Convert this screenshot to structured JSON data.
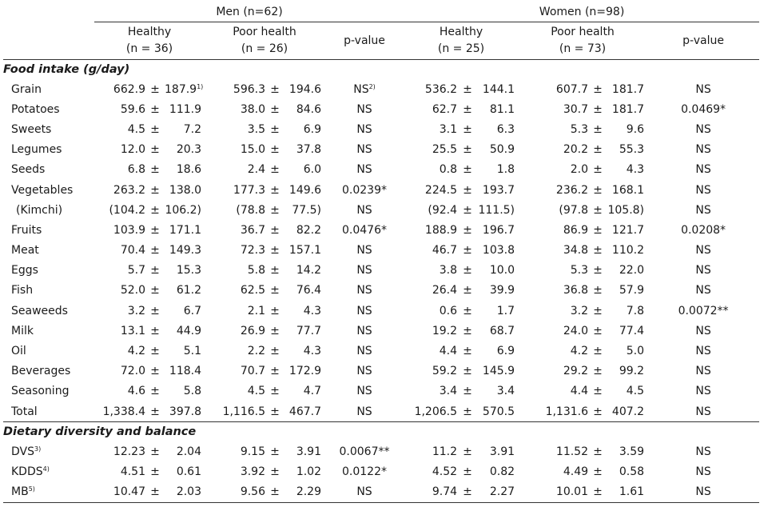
{
  "header": {
    "men_group": "Men (n=62)",
    "women_group": "Women (n=98)",
    "men_cols": [
      {
        "line1": "Healthy",
        "line2": "(n = 36)"
      },
      {
        "line1": "Poor health",
        "line2": "(n = 26)"
      },
      {
        "line1": "p-value",
        "line2": ""
      }
    ],
    "women_cols": [
      {
        "line1": "Healthy",
        "line2": "(n = 25)"
      },
      {
        "line1": "Poor health",
        "line2": "(n = 73)"
      },
      {
        "line1": "p-value",
        "line2": ""
      }
    ]
  },
  "sections": {
    "food": "Food intake (g/day)",
    "diversity": "Dietary diversity and balance"
  },
  "pm": "±",
  "food_rows": [
    {
      "label": "Grain",
      "m1": "662.9",
      "s1": "187.9",
      "s1_sup": "1)",
      "m2": "596.3",
      "s2": "194.6",
      "p1": "NS",
      "p1_sup": "2)",
      "w1": "536.2",
      "ws1": "144.1",
      "w2": "607.7",
      "ws2": "181.7",
      "p2": "NS"
    },
    {
      "label": "Potatoes",
      "m1": "59.6",
      "s1": "111.9",
      "m2": "38.0",
      "s2": "84.6",
      "p1": "NS",
      "w1": "62.7",
      "ws1": "81.1",
      "w2": "30.7",
      "ws2": "181.7",
      "p2": "0.0469*"
    },
    {
      "label": "Sweets",
      "m1": "4.5",
      "s1": "7.2",
      "m2": "3.5",
      "s2": "6.9",
      "p1": "NS",
      "w1": "3.1",
      "ws1": "6.3",
      "w2": "5.3",
      "ws2": "9.6",
      "p2": "NS"
    },
    {
      "label": "Legumes",
      "m1": "12.0",
      "s1": "20.3",
      "m2": "15.0",
      "s2": "37.8",
      "p1": "NS",
      "w1": "25.5",
      "ws1": "50.9",
      "w2": "20.2",
      "ws2": "55.3",
      "p2": "NS"
    },
    {
      "label": "Seeds",
      "m1": "6.8",
      "s1": "18.6",
      "m2": "2.4",
      "s2": "6.0",
      "p1": "NS",
      "w1": "0.8",
      "ws1": "1.8",
      "w2": "2.0",
      "ws2": "4.3",
      "p2": "NS"
    },
    {
      "label": "Vegetables",
      "m1": "263.2",
      "s1": "138.0",
      "m2": "177.3",
      "s2": "149.6",
      "p1": "0.0239*",
      "w1": "224.5",
      "ws1": "193.7",
      "w2": "236.2",
      "ws2": "168.1",
      "p2": "NS"
    },
    {
      "label": "(Kimchi)",
      "sub": true,
      "m1": "(104.2",
      "s1": "106.2)",
      "m2": "(78.8",
      "s2": "77.5)",
      "p1": "NS",
      "w1": "(92.4",
      "ws1": "111.5)",
      "w2": "(97.8",
      "ws2": "105.8)",
      "p2": "NS"
    },
    {
      "label": "Fruits",
      "m1": "103.9",
      "s1": "171.1",
      "m2": "36.7",
      "s2": "82.2",
      "p1": "0.0476*",
      "w1": "188.9",
      "ws1": "196.7",
      "w2": "86.9",
      "ws2": "121.7",
      "p2": "0.0208*"
    },
    {
      "label": "Meat",
      "m1": "70.4",
      "s1": "149.3",
      "m2": "72.3",
      "s2": "157.1",
      "p1": "NS",
      "w1": "46.7",
      "ws1": "103.8",
      "w2": "34.8",
      "ws2": "110.2",
      "p2": "NS"
    },
    {
      "label": "Eggs",
      "m1": "5.7",
      "s1": "15.3",
      "m2": "5.8",
      "s2": "14.2",
      "p1": "NS",
      "w1": "3.8",
      "ws1": "10.0",
      "w2": "5.3",
      "ws2": "22.0",
      "p2": "NS"
    },
    {
      "label": "Fish",
      "m1": "52.0",
      "s1": "61.2",
      "m2": "62.5",
      "s2": "76.4",
      "p1": "NS",
      "w1": "26.4",
      "ws1": "39.9",
      "w2": "36.8",
      "ws2": "57.9",
      "p2": "NS"
    },
    {
      "label": "Seaweeds",
      "m1": "3.2",
      "s1": "6.7",
      "m2": "2.1",
      "s2": "4.3",
      "p1": "NS",
      "w1": "0.6",
      "ws1": "1.7",
      "w2": "3.2",
      "ws2": "7.8",
      "p2": "0.0072**"
    },
    {
      "label": "Milk",
      "m1": "13.1",
      "s1": "44.9",
      "m2": "26.9",
      "s2": "77.7",
      "p1": "NS",
      "w1": "19.2",
      "ws1": "68.7",
      "w2": "24.0",
      "ws2": "77.4",
      "p2": "NS"
    },
    {
      "label": "Oil",
      "m1": "4.2",
      "s1": "5.1",
      "m2": "2.2",
      "s2": "4.3",
      "p1": "NS",
      "w1": "4.4",
      "ws1": "6.9",
      "w2": "4.2",
      "ws2": "5.0",
      "p2": "NS"
    },
    {
      "label": "Beverages",
      "m1": "72.0",
      "s1": "118.4",
      "m2": "70.7",
      "s2": "172.9",
      "p1": "NS",
      "w1": "59.2",
      "ws1": "145.9",
      "w2": "29.2",
      "ws2": "99.2",
      "p2": "NS"
    },
    {
      "label": "Seasoning",
      "m1": "4.6",
      "s1": "5.8",
      "m2": "4.5",
      "s2": "4.7",
      "p1": "NS",
      "w1": "3.4",
      "ws1": "3.4",
      "w2": "4.4",
      "ws2": "4.5",
      "p2": "NS"
    },
    {
      "label": "Total",
      "m1": "1,338.4",
      "s1": "397.8",
      "m2": "1,116.5",
      "s2": "467.7",
      "p1": "NS",
      "w1": "1,206.5",
      "ws1": "570.5",
      "w2": "1,131.6",
      "ws2": "407.2",
      "p2": "NS"
    }
  ],
  "diversity_rows": [
    {
      "label": "DVS",
      "label_sup": "3)",
      "m1": "12.23",
      "s1": "2.04",
      "m2": "9.15",
      "s2": "3.91",
      "p1": "0.0067**",
      "w1": "11.2",
      "ws1": "3.91",
      "w2": "11.52",
      "ws2": "3.59",
      "p2": "NS"
    },
    {
      "label": "KDDS",
      "label_sup": "4)",
      "m1": "4.51",
      "s1": "0.61",
      "m2": "3.92",
      "s2": "1.02",
      "p1": "0.0122*",
      "w1": "4.52",
      "ws1": "0.82",
      "w2": "4.49",
      "ws2": "0.58",
      "p2": "NS"
    },
    {
      "label": "MB",
      "label_sup": "5)",
      "m1": "10.47",
      "s1": "2.03",
      "m2": "9.56",
      "s2": "2.29",
      "p1": "NS",
      "w1": "9.74",
      "ws1": "2.27",
      "w2": "10.01",
      "ws2": "1.61",
      "p2": "NS"
    }
  ]
}
